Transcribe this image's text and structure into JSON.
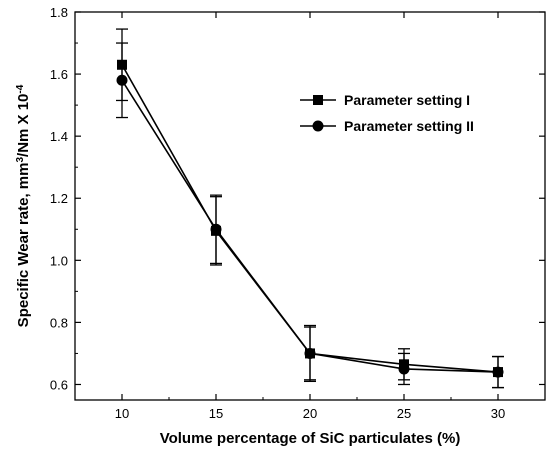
{
  "chart_data": {
    "type": "line",
    "xlabel": "Volume percentage of SiC particulates (%)",
    "ylabel_main": "Specific Wear rate, mm",
    "ylabel_sup1": "3",
    "ylabel_mid": "/Nm X 10",
    "ylabel_sup2": "-4",
    "xlim": [
      7.5,
      32.5
    ],
    "ylim": [
      0.55,
      1.8
    ],
    "x_ticks": [
      10,
      15,
      20,
      25,
      30
    ],
    "x_tick_labels": [
      "10",
      "15",
      "20",
      "25",
      "30"
    ],
    "y_ticks": [
      0.6,
      0.8,
      1.0,
      1.2,
      1.4,
      1.6,
      1.8
    ],
    "y_tick_labels": [
      "0.6",
      "0.8",
      "1.0",
      "1.2",
      "1.4",
      "1.6",
      "1.8"
    ],
    "grid": false,
    "legend_position": "top-right",
    "series": [
      {
        "name": "Parameter setting I",
        "marker": "square",
        "x": [
          10,
          15,
          20,
          25,
          30
        ],
        "y": [
          1.63,
          1.095,
          0.7,
          0.665,
          0.64
        ],
        "err": [
          0.115,
          0.11,
          0.085,
          0.05,
          0.05
        ]
      },
      {
        "name": "Parameter setting II",
        "marker": "circle",
        "x": [
          10,
          15,
          20,
          25,
          30
        ],
        "y": [
          1.58,
          1.1,
          0.7,
          0.65,
          0.64
        ],
        "err": [
          0.12,
          0.11,
          0.09,
          0.05,
          0.05
        ]
      }
    ],
    "colors": {
      "line": "#000000",
      "background": "#ffffff"
    }
  }
}
